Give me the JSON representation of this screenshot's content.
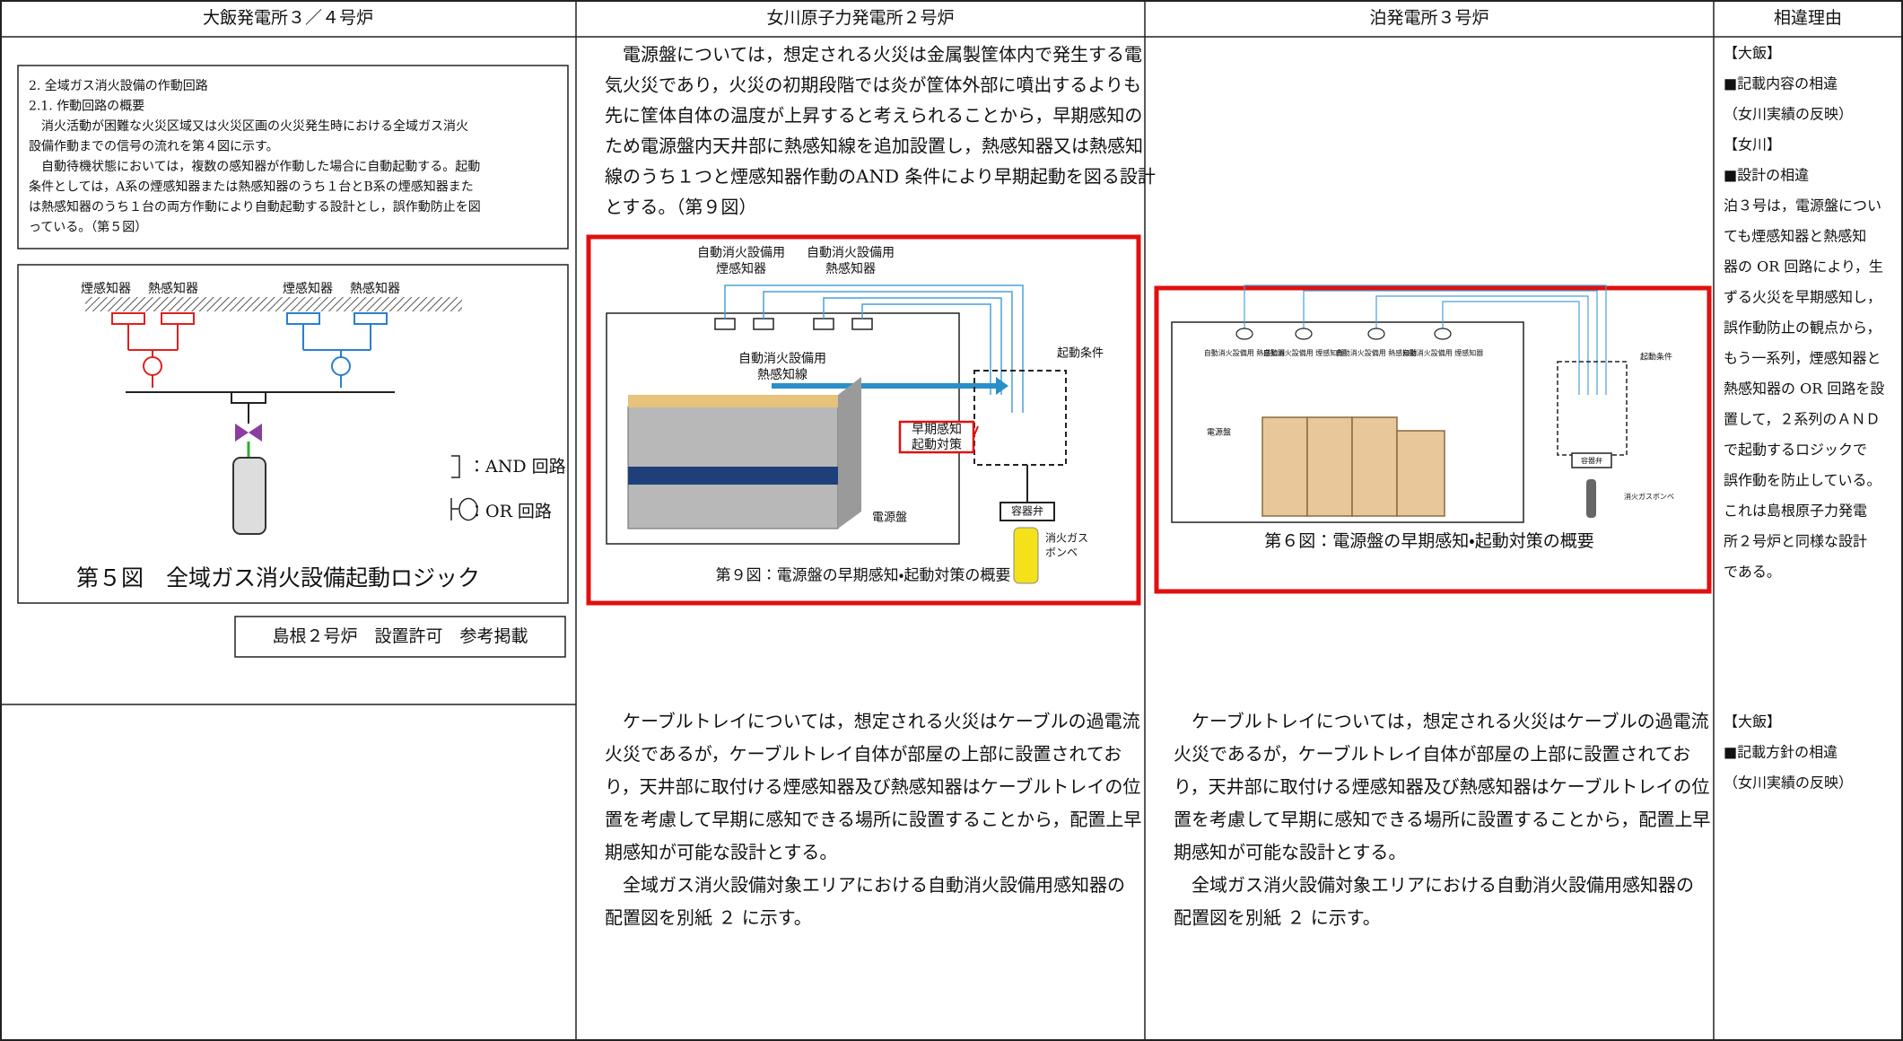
{
  "header": [
    "大飯発電所３／４号炉",
    "女川原子力発電所２号炉",
    "泊発電所３号炉",
    "相違理由"
  ],
  "ohi_box": {
    "lines": [
      "2. 全域ガス消火設備の作動回路",
      "2.1. 作動回路の概要",
      "　消火活動が困難な火災区域又は火災区画の火災発生時における全域ガス消火",
      "設備作動までの信号の流れを第４図に示す。",
      "　自動待機状態においては，複数の感知器が作動した場合に自動起動する。起動",
      "条件としては，A系の煙感知器または熱感知器のうち１台とB系の煙感知器また",
      "は熱感知器のうち１台の両方作動により自動起動する設計とし，誤作動防止を図",
      "っている。（第５図）"
    ]
  },
  "fig5": {
    "labels_a": [
      "煙感知器",
      "熱感知器"
    ],
    "labels_b": [
      "煙感知器",
      "熱感知器"
    ],
    "and_label": "：AND 回路",
    "or_label": "：OR 回路",
    "caption": "第５図　全域ガス消火設備起動ロジック"
  },
  "note": "島根２号炉　設置許可　参考掲載",
  "onagawa_text": [
    "　電源盤については，想定される火災は金属製筐体内で発生する電",
    "気火災であり，火災の初期段階では炎が筐体外部に噴出するよりも",
    "先に筐体自体の温度が上昇すると考えられることから，早期感知の",
    "ため電源盤内天井部に熱感知線を追加設置し，熱感知器又は熱感知",
    "線のうち１つと煙感知器作動のAND 条件により早期起動を図る設計",
    "とする。（第９図）"
  ],
  "fig9": {
    "smoke_label": [
      "自動消火設備用",
      "煙感知器"
    ],
    "heat_label": [
      "自動消火設備用",
      "熱感知器"
    ],
    "wire_label": [
      "自動消火設備用",
      "熱感知線"
    ],
    "start_condition": "起動条件",
    "early_label": [
      "早期感知",
      "起動対策"
    ],
    "valve": "容器弁",
    "panel": "電源盤",
    "cylinder": [
      "消火ガス",
      "ボンベ"
    ],
    "caption": "第９図：電源盤の早期感知・起動対策の概要"
  },
  "fig6": {
    "detectors": [
      "自動消火設備用 熱感知器",
      "自動消火設備用 煙感知器",
      "自動消火設備用 熱感知器",
      "自動消火設備用 煙感知器"
    ],
    "panel": "電源盤",
    "start_condition": "起動条件",
    "valve": "容器弁",
    "cylinder": "消火ガスボンベ",
    "caption": "第６図：電源盤の早期感知・起動対策の概要"
  },
  "reason1": [
    {
      "text": "【大飯】",
      "color": "#2a8fd8"
    },
    {
      "text": "■記載内容の相違",
      "color": "#2a8fd8"
    },
    {
      "text": "（女川実績の反映）",
      "color": "#2a8fd8"
    },
    {
      "text": "【女川】",
      "color": "#e02020"
    },
    {
      "text": "■設計の相違",
      "color": "#e02020"
    },
    {
      "text": "泊３号は，電源盤につい",
      "color": "#e02020"
    },
    {
      "text": "ても煙感知器と熱感知",
      "color": "#e02020"
    },
    {
      "text": "器の OR 回路により，生",
      "color": "#e02020"
    },
    {
      "text": "ずる火災を早期感知し，",
      "color": "#e02020"
    },
    {
      "text": "誤作動防止の観点から，",
      "color": "#e02020"
    },
    {
      "text": "もう一系列，煙感知器と",
      "color": "#e02020"
    },
    {
      "text": "熱感知器の OR 回路を設",
      "color": "#e02020"
    },
    {
      "text": "置して，２系列のＡＮＤ",
      "color": "#e02020"
    },
    {
      "text": "で起動するロジックで",
      "color": "#e02020"
    },
    {
      "text": "誤作動を防止している。",
      "color": "#e02020"
    },
    {
      "text": "これは島根原子力発電",
      "color": "#e02020"
    },
    {
      "text": "所２号炉と同様な設計",
      "color": "#e02020"
    },
    {
      "text": "である。",
      "color": "#e02020"
    }
  ],
  "cable_onagawa": [
    "　ケーブルトレイについては，想定される火災はケーブルの過電流",
    "火災であるが，ケーブルトレイ自体が部屋の上部に設置されてお",
    "り，天井部に取付ける煙感知器及び熱感知器はケーブルトレイの位",
    "置を考慮して早期に感知できる場所に設置することから，配置上早",
    "期感知が可能な設計とする。",
    "　全域ガス消火設備対象エリアにおける自動消火設備用感知器の",
    "配置図を別紙 ２ に示す。"
  ],
  "cable_tomari": [
    "　ケーブルトレイについては，想定される火災はケーブルの過電流",
    "火災であるが，ケーブルトレイ自体が部屋の上部に設置されてお",
    "り，天井部に取付ける煙感知器及び熱感知器はケーブルトレイの位",
    "置を考慮して早期に感知できる場所に設置することから，配置上早",
    "期感知が可能な設計とする。",
    "　全域ガス消火設備対象エリアにおける自動消火設備用感知器の",
    "配置図を別紙 ２ に示す。"
  ],
  "reason2": [
    {
      "text": "【大飯】",
      "color": "#2a8fd8"
    },
    {
      "text": "■記載方針の相違",
      "color": "#2a8fd8"
    },
    {
      "text": "（女川実績の反映）",
      "color": "#2a8fd8"
    }
  ]
}
